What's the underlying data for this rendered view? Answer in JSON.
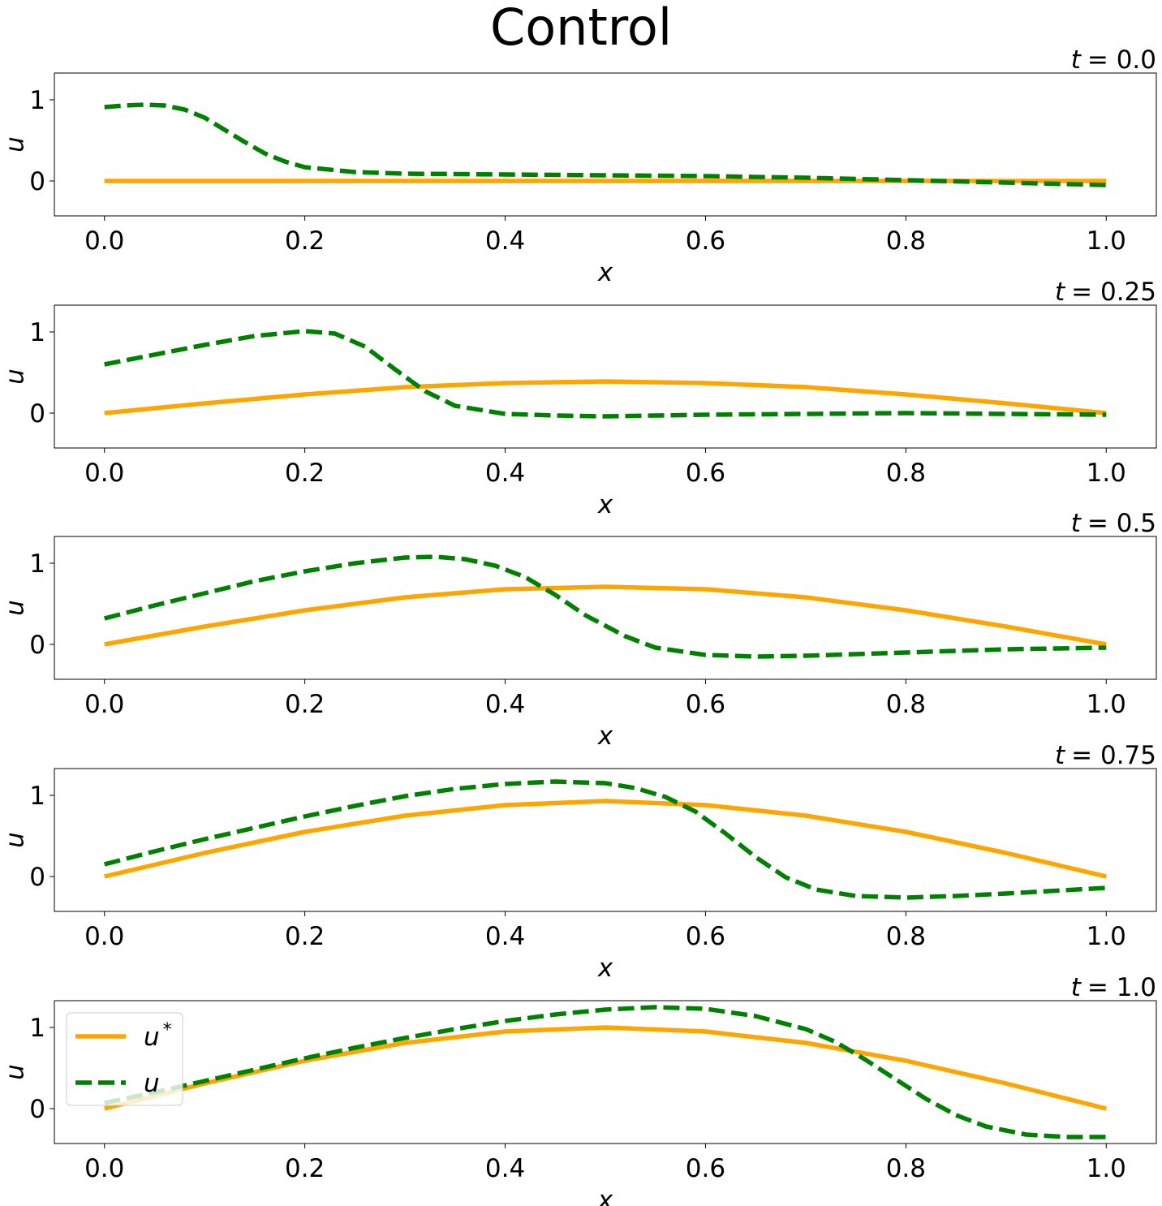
{
  "title": "Control",
  "chart_data": [
    {
      "type": "line",
      "title": "t = 0.0",
      "title_var": "t",
      "title_value": "= 0.0",
      "xlabel": "x",
      "ylabel": "u",
      "xlim": [
        -0.05,
        1.05
      ],
      "ylim": [
        -0.43,
        1.33
      ],
      "xticks": [
        "0.0",
        "0.2",
        "0.4",
        "0.6",
        "0.8",
        "1.0"
      ],
      "yticks": [
        "0",
        "1"
      ],
      "series": [
        {
          "name": "u*",
          "color": "#ffa500",
          "style": "solid",
          "x": [
            0,
            0.1,
            0.2,
            0.3,
            0.4,
            0.5,
            0.6,
            0.7,
            0.8,
            0.9,
            1.0
          ],
          "values": [
            0,
            0,
            0,
            0,
            0,
            0,
            0,
            0,
            0,
            0,
            0
          ]
        },
        {
          "name": "u",
          "color": "#008000",
          "style": "dashed",
          "x": [
            0,
            0.02,
            0.04,
            0.06,
            0.08,
            0.1,
            0.12,
            0.14,
            0.16,
            0.18,
            0.2,
            0.25,
            0.3,
            0.4,
            0.5,
            0.6,
            0.7,
            0.8,
            0.9,
            1.0
          ],
          "values": [
            0.91,
            0.93,
            0.94,
            0.93,
            0.88,
            0.78,
            0.63,
            0.48,
            0.34,
            0.24,
            0.17,
            0.11,
            0.09,
            0.08,
            0.07,
            0.06,
            0.04,
            0.01,
            -0.02,
            -0.05
          ]
        }
      ]
    },
    {
      "type": "line",
      "title": "t = 0.25",
      "title_var": "t",
      "title_value": "= 0.25",
      "xlabel": "x",
      "ylabel": "u",
      "xlim": [
        -0.05,
        1.05
      ],
      "ylim": [
        -0.43,
        1.33
      ],
      "xticks": [
        "0.0",
        "0.2",
        "0.4",
        "0.6",
        "0.8",
        "1.0"
      ],
      "yticks": [
        "0",
        "1"
      ],
      "series": [
        {
          "name": "u*",
          "color": "#ffa500",
          "style": "solid",
          "x": [
            0,
            0.1,
            0.2,
            0.3,
            0.4,
            0.5,
            0.6,
            0.7,
            0.8,
            0.9,
            1.0
          ],
          "values": [
            0,
            0.12,
            0.23,
            0.32,
            0.37,
            0.39,
            0.37,
            0.32,
            0.23,
            0.12,
            0
          ]
        },
        {
          "name": "u",
          "color": "#008000",
          "style": "dashed",
          "x": [
            0,
            0.05,
            0.1,
            0.15,
            0.2,
            0.23,
            0.26,
            0.29,
            0.32,
            0.35,
            0.4,
            0.45,
            0.5,
            0.6,
            0.7,
            0.8,
            0.9,
            1.0
          ],
          "values": [
            0.6,
            0.72,
            0.84,
            0.95,
            1.01,
            0.98,
            0.82,
            0.54,
            0.27,
            0.09,
            -0.01,
            -0.03,
            -0.04,
            -0.02,
            -0.01,
            0,
            -0.01,
            -0.02
          ]
        }
      ]
    },
    {
      "type": "line",
      "title": "t = 0.5",
      "title_var": "t",
      "title_value": "= 0.5",
      "xlabel": "x",
      "ylabel": "u",
      "xlim": [
        -0.05,
        1.05
      ],
      "ylim": [
        -0.43,
        1.33
      ],
      "xticks": [
        "0.0",
        "0.2",
        "0.4",
        "0.6",
        "0.8",
        "1.0"
      ],
      "yticks": [
        "0",
        "1"
      ],
      "series": [
        {
          "name": "u*",
          "color": "#ffa500",
          "style": "solid",
          "x": [
            0,
            0.1,
            0.2,
            0.3,
            0.4,
            0.5,
            0.6,
            0.7,
            0.8,
            0.9,
            1.0
          ],
          "values": [
            0,
            0.22,
            0.42,
            0.58,
            0.68,
            0.71,
            0.68,
            0.58,
            0.42,
            0.22,
            0
          ]
        },
        {
          "name": "u",
          "color": "#008000",
          "style": "dashed",
          "x": [
            0,
            0.05,
            0.1,
            0.15,
            0.2,
            0.25,
            0.3,
            0.33,
            0.36,
            0.39,
            0.42,
            0.45,
            0.48,
            0.52,
            0.55,
            0.6,
            0.65,
            0.7,
            0.8,
            0.9,
            1.0
          ],
          "values": [
            0.32,
            0.48,
            0.63,
            0.78,
            0.9,
            1.0,
            1.07,
            1.08,
            1.05,
            0.97,
            0.83,
            0.61,
            0.36,
            0.1,
            -0.04,
            -0.13,
            -0.15,
            -0.14,
            -0.1,
            -0.06,
            -0.04
          ]
        }
      ]
    },
    {
      "type": "line",
      "title": "t = 0.75",
      "title_var": "t",
      "title_value": "= 0.75",
      "xlabel": "x",
      "ylabel": "u",
      "xlim": [
        -0.05,
        1.05
      ],
      "ylim": [
        -0.43,
        1.33
      ],
      "xticks": [
        "0.0",
        "0.2",
        "0.4",
        "0.6",
        "0.8",
        "1.0"
      ],
      "yticks": [
        "0",
        "1"
      ],
      "series": [
        {
          "name": "u*",
          "color": "#ffa500",
          "style": "solid",
          "x": [
            0,
            0.1,
            0.2,
            0.3,
            0.4,
            0.5,
            0.6,
            0.7,
            0.8,
            0.9,
            1.0
          ],
          "values": [
            0,
            0.29,
            0.55,
            0.75,
            0.88,
            0.93,
            0.88,
            0.75,
            0.55,
            0.29,
            0
          ]
        },
        {
          "name": "u",
          "color": "#008000",
          "style": "dashed",
          "x": [
            0,
            0.05,
            0.1,
            0.15,
            0.2,
            0.25,
            0.3,
            0.35,
            0.4,
            0.45,
            0.5,
            0.53,
            0.56,
            0.59,
            0.62,
            0.65,
            0.68,
            0.71,
            0.75,
            0.8,
            0.85,
            0.9,
            1.0
          ],
          "values": [
            0.15,
            0.31,
            0.46,
            0.6,
            0.74,
            0.87,
            0.99,
            1.08,
            1.14,
            1.17,
            1.15,
            1.09,
            0.98,
            0.8,
            0.53,
            0.24,
            -0.01,
            -0.16,
            -0.24,
            -0.26,
            -0.24,
            -0.21,
            -0.14
          ]
        }
      ]
    },
    {
      "type": "line",
      "title": "t = 1.0",
      "title_var": "t",
      "title_value": "= 1.0",
      "xlabel": "x",
      "ylabel": "u",
      "xlim": [
        -0.05,
        1.05
      ],
      "ylim": [
        -0.43,
        1.33
      ],
      "xticks": [
        "0.0",
        "0.2",
        "0.4",
        "0.6",
        "0.8",
        "1.0"
      ],
      "yticks": [
        "0",
        "1"
      ],
      "legend": {
        "placement": "upper-left",
        "entries": [
          "u*",
          "u"
        ]
      },
      "series": [
        {
          "name": "u*",
          "color": "#ffa500",
          "style": "solid",
          "x": [
            0,
            0.1,
            0.2,
            0.3,
            0.4,
            0.5,
            0.6,
            0.7,
            0.8,
            0.9,
            1.0
          ],
          "values": [
            0,
            0.31,
            0.59,
            0.81,
            0.95,
            1.0,
            0.95,
            0.81,
            0.59,
            0.31,
            0
          ]
        },
        {
          "name": "u",
          "color": "#008000",
          "style": "dashed",
          "x": [
            0,
            0.05,
            0.1,
            0.15,
            0.2,
            0.25,
            0.3,
            0.35,
            0.4,
            0.45,
            0.5,
            0.55,
            0.6,
            0.65,
            0.7,
            0.73,
            0.76,
            0.79,
            0.82,
            0.85,
            0.88,
            0.92,
            0.96,
            1.0
          ],
          "values": [
            0.07,
            0.2,
            0.34,
            0.48,
            0.62,
            0.75,
            0.87,
            0.98,
            1.08,
            1.16,
            1.22,
            1.25,
            1.23,
            1.14,
            0.98,
            0.82,
            0.6,
            0.36,
            0.12,
            -0.08,
            -0.22,
            -0.32,
            -0.35,
            -0.35
          ]
        }
      ]
    }
  ]
}
